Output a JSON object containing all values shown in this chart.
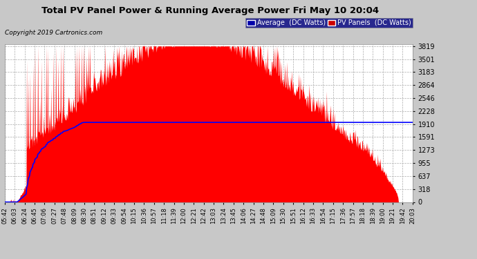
{
  "title": "Total PV Panel Power & Running Average Power Fri May 10 20:04",
  "copyright": "Copyright 2019 Cartronics.com",
  "legend_avg": "Average  (DC Watts)",
  "legend_pv": "PV Panels  (DC Watts)",
  "plot_bg_color": "#ffffff",
  "fig_bg_color": "#c8c8c8",
  "grid_color": "#aaaaaa",
  "pv_color": "#ff0000",
  "avg_color": "#0000ff",
  "avg_legend_bg": "#0000aa",
  "pv_legend_bg": "#cc0000",
  "ymin": 0.0,
  "ymax": 3819.3,
  "yticks": [
    0.0,
    318.3,
    636.6,
    954.8,
    1273.1,
    1591.4,
    1909.7,
    2227.9,
    2546.2,
    2864.5,
    3182.8,
    3501.1,
    3819.3
  ],
  "xtick_labels": [
    "05:42",
    "06:03",
    "06:24",
    "06:45",
    "07:06",
    "07:27",
    "07:48",
    "08:09",
    "08:30",
    "08:51",
    "09:12",
    "09:33",
    "09:54",
    "10:15",
    "10:36",
    "10:57",
    "11:18",
    "11:39",
    "12:00",
    "12:21",
    "12:42",
    "13:03",
    "13:24",
    "13:45",
    "14:06",
    "14:27",
    "14:48",
    "15:09",
    "15:30",
    "15:51",
    "16:12",
    "16:33",
    "16:54",
    "17:15",
    "17:36",
    "17:57",
    "18:18",
    "18:39",
    "19:00",
    "19:21",
    "19:42",
    "20:03"
  ],
  "n_points": 840,
  "peak_value": 3819.3,
  "avg_peak_value": 1950.0
}
